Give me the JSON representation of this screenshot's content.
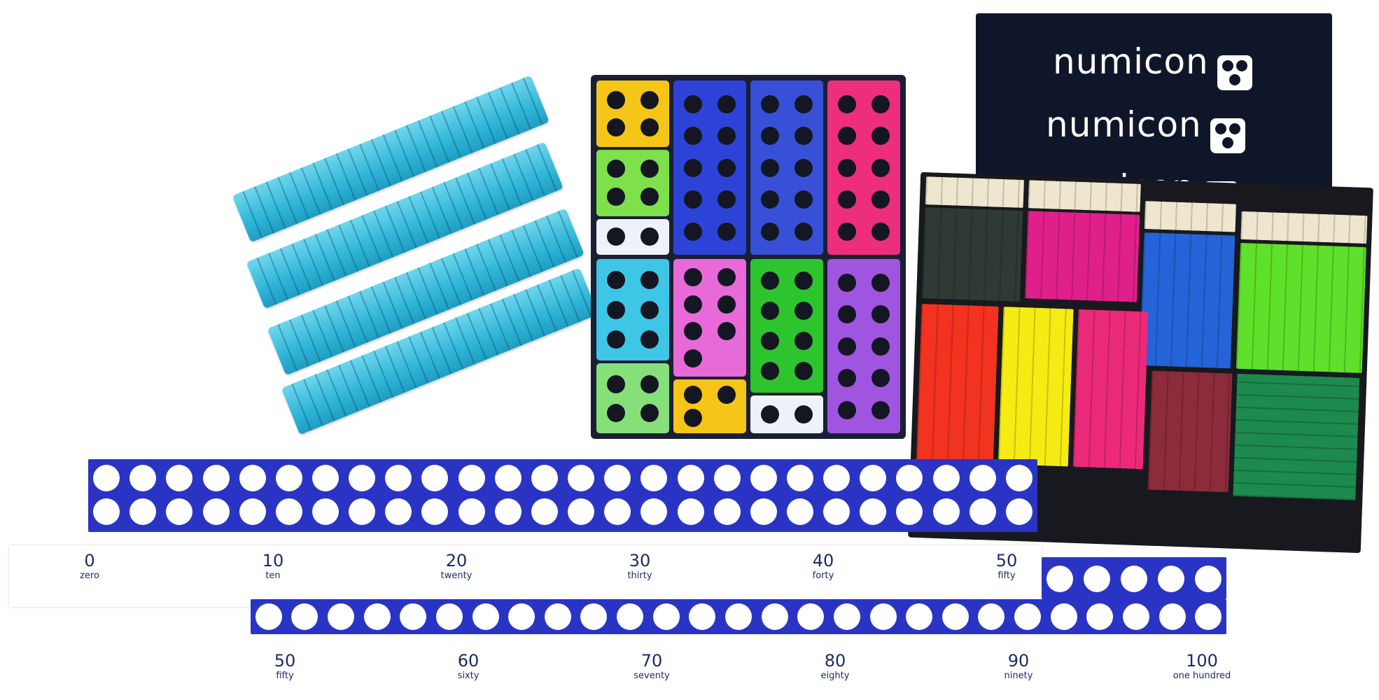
{
  "brand": {
    "labels": [
      "numicon",
      "numicon",
      "numicon"
    ]
  },
  "number_track_top": [
    {
      "number": "0",
      "word": "zero"
    },
    {
      "number": "10",
      "word": "ten"
    },
    {
      "number": "20",
      "word": "twenty"
    },
    {
      "number": "30",
      "word": "thirty"
    },
    {
      "number": "40",
      "word": "forty"
    },
    {
      "number": "50",
      "word": "fifty"
    }
  ],
  "number_track_bottom": [
    {
      "number": "50",
      "word": "fifty"
    },
    {
      "number": "60",
      "word": "sixty"
    },
    {
      "number": "70",
      "word": "seventy"
    },
    {
      "number": "80",
      "word": "eighty"
    },
    {
      "number": "90",
      "word": "ninety"
    },
    {
      "number": "100",
      "word": "one hundred"
    }
  ],
  "colors": {
    "strip": "#2a34c4",
    "rods": "#2fb6d8",
    "bags": "#10162a",
    "tray": "#1a1f33"
  }
}
